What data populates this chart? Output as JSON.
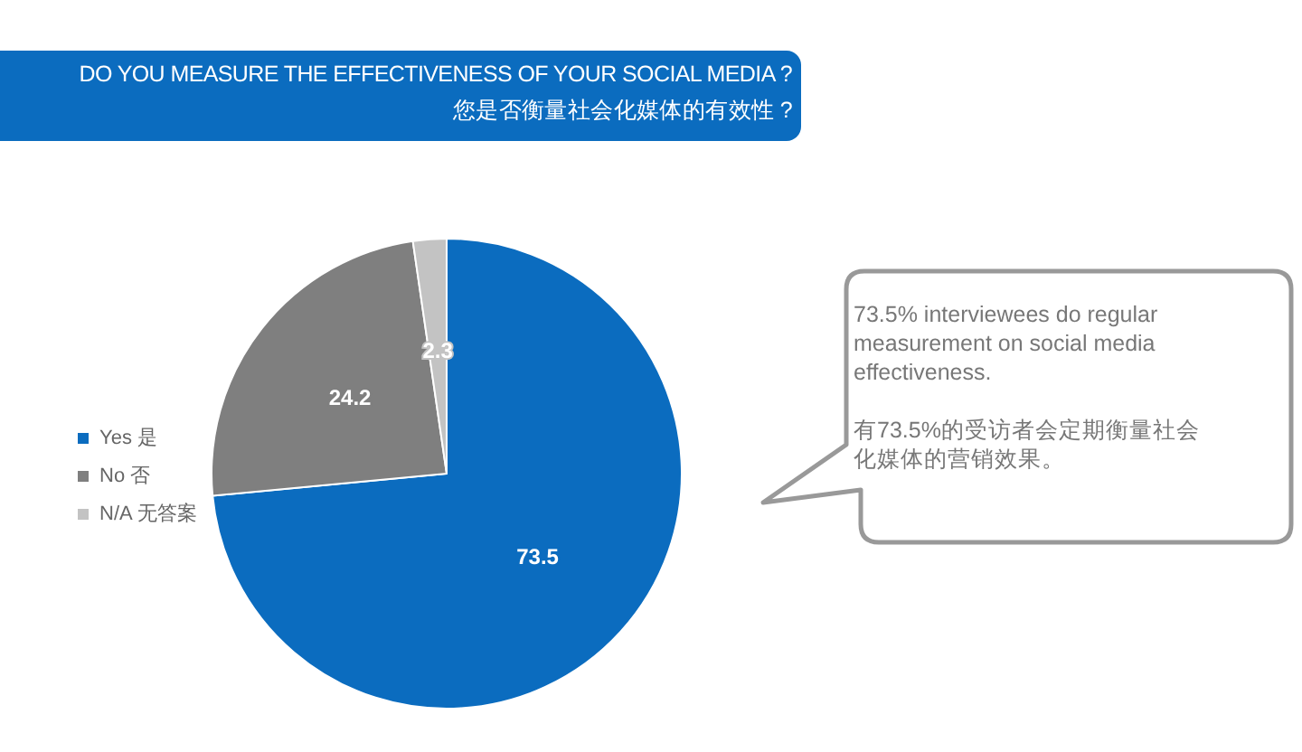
{
  "chart_data": {
    "type": "pie",
    "title": "DO YOU MEASURE THE EFFECTIVENESS OF YOUR SOCIAL MEDIA ?",
    "subtitle": "您是否衡量社会化媒体的有效性 ?",
    "categories": [
      "Yes 是",
      "No 否",
      "N/A 无答案"
    ],
    "values": [
      73.5,
      24.2,
      2.3
    ],
    "colors": [
      "#0b6cbf",
      "#7f7f7f",
      "#c3c3c3"
    ],
    "data_labels": true,
    "legend": "left",
    "annotations": [
      "73.5% interviewees do regular measurement on social media effectiveness.",
      "有73.5%的受访者会定期衡量社会化媒体的营销效果。"
    ]
  }
}
